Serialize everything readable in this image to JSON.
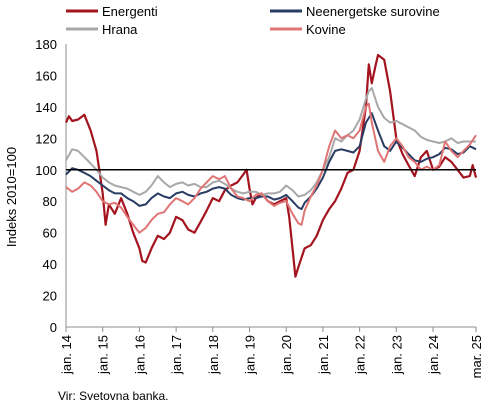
{
  "chart_data": {
    "type": "line",
    "ylabel": "Indeks 2010=100",
    "ylim": [
      0,
      180
    ],
    "yticks": [
      0,
      20,
      40,
      60,
      80,
      100,
      120,
      140,
      160,
      180
    ],
    "x_tick_labels": [
      "jan. 14",
      "jan. 15",
      "jan. 16",
      "jan. 17",
      "jan. 18",
      "jan. 19",
      "jan. 20",
      "jan. 21",
      "jan. 22",
      "jan. 23",
      "jan. 24",
      "mar. 25"
    ],
    "x_tick_values": [
      2014.0,
      2015.0,
      2016.0,
      2017.0,
      2018.0,
      2019.0,
      2020.0,
      2021.0,
      2022.0,
      2023.0,
      2024.0,
      2025.17
    ],
    "xlim": [
      2014.0,
      2025.17
    ],
    "reference_line": 100,
    "legend_position": "top",
    "source": "Vir: Svetovna banka.",
    "series": [
      {
        "name": "Energenti",
        "color": "#a3141e",
        "points": [
          [
            2014.0,
            130
          ],
          [
            2014.08,
            134
          ],
          [
            2014.17,
            131
          ],
          [
            2014.33,
            132
          ],
          [
            2014.5,
            135
          ],
          [
            2014.67,
            125
          ],
          [
            2014.83,
            112
          ],
          [
            2015.0,
            85
          ],
          [
            2015.08,
            65
          ],
          [
            2015.17,
            78
          ],
          [
            2015.33,
            72
          ],
          [
            2015.5,
            82
          ],
          [
            2015.67,
            72
          ],
          [
            2015.83,
            60
          ],
          [
            2016.0,
            50
          ],
          [
            2016.08,
            42
          ],
          [
            2016.17,
            41
          ],
          [
            2016.33,
            50
          ],
          [
            2016.5,
            58
          ],
          [
            2016.67,
            56
          ],
          [
            2016.83,
            60
          ],
          [
            2017.0,
            70
          ],
          [
            2017.17,
            68
          ],
          [
            2017.33,
            62
          ],
          [
            2017.5,
            60
          ],
          [
            2017.67,
            67
          ],
          [
            2017.83,
            74
          ],
          [
            2018.0,
            82
          ],
          [
            2018.17,
            80
          ],
          [
            2018.33,
            87
          ],
          [
            2018.5,
            90
          ],
          [
            2018.67,
            92
          ],
          [
            2018.83,
            97
          ],
          [
            2018.92,
            100
          ],
          [
            2019.0,
            88
          ],
          [
            2019.08,
            78
          ],
          [
            2019.17,
            82
          ],
          [
            2019.33,
            85
          ],
          [
            2019.5,
            80
          ],
          [
            2019.67,
            78
          ],
          [
            2019.83,
            80
          ],
          [
            2020.0,
            82
          ],
          [
            2020.08,
            70
          ],
          [
            2020.17,
            50
          ],
          [
            2020.25,
            32
          ],
          [
            2020.33,
            38
          ],
          [
            2020.5,
            50
          ],
          [
            2020.67,
            52
          ],
          [
            2020.83,
            58
          ],
          [
            2021.0,
            68
          ],
          [
            2021.17,
            75
          ],
          [
            2021.33,
            80
          ],
          [
            2021.5,
            88
          ],
          [
            2021.67,
            98
          ],
          [
            2021.83,
            100
          ],
          [
            2022.0,
            112
          ],
          [
            2022.17,
            140
          ],
          [
            2022.25,
            167
          ],
          [
            2022.33,
            155
          ],
          [
            2022.42,
            165
          ],
          [
            2022.5,
            173
          ],
          [
            2022.67,
            170
          ],
          [
            2022.83,
            150
          ],
          [
            2023.0,
            120
          ],
          [
            2023.17,
            110
          ],
          [
            2023.33,
            103
          ],
          [
            2023.5,
            96
          ],
          [
            2023.67,
            108
          ],
          [
            2023.83,
            112
          ],
          [
            2024.0,
            100
          ],
          [
            2024.17,
            102
          ],
          [
            2024.33,
            108
          ],
          [
            2024.5,
            105
          ],
          [
            2024.67,
            100
          ],
          [
            2024.83,
            95
          ],
          [
            2025.0,
            96
          ],
          [
            2025.08,
            103
          ],
          [
            2025.17,
            95
          ]
        ]
      },
      {
        "name": "Neenergetske surovine",
        "color": "#283c64",
        "points": [
          [
            2014.0,
            97
          ],
          [
            2014.17,
            101
          ],
          [
            2014.33,
            100
          ],
          [
            2014.5,
            98
          ],
          [
            2014.67,
            96
          ],
          [
            2014.83,
            93
          ],
          [
            2015.0,
            90
          ],
          [
            2015.17,
            87
          ],
          [
            2015.33,
            85
          ],
          [
            2015.5,
            85
          ],
          [
            2015.67,
            82
          ],
          [
            2015.83,
            80
          ],
          [
            2016.0,
            77
          ],
          [
            2016.17,
            78
          ],
          [
            2016.33,
            82
          ],
          [
            2016.5,
            85
          ],
          [
            2016.67,
            83
          ],
          [
            2016.83,
            82
          ],
          [
            2017.0,
            85
          ],
          [
            2017.17,
            86
          ],
          [
            2017.33,
            84
          ],
          [
            2017.5,
            83
          ],
          [
            2017.67,
            85
          ],
          [
            2017.83,
            86
          ],
          [
            2018.0,
            88
          ],
          [
            2018.17,
            89
          ],
          [
            2018.33,
            88
          ],
          [
            2018.5,
            84
          ],
          [
            2018.67,
            82
          ],
          [
            2018.83,
            81
          ],
          [
            2019.0,
            82
          ],
          [
            2019.17,
            82
          ],
          [
            2019.33,
            83
          ],
          [
            2019.5,
            83
          ],
          [
            2019.67,
            81
          ],
          [
            2019.83,
            82
          ],
          [
            2020.0,
            84
          ],
          [
            2020.17,
            80
          ],
          [
            2020.33,
            76
          ],
          [
            2020.42,
            75
          ],
          [
            2020.5,
            79
          ],
          [
            2020.67,
            83
          ],
          [
            2020.83,
            88
          ],
          [
            2021.0,
            95
          ],
          [
            2021.17,
            105
          ],
          [
            2021.33,
            112
          ],
          [
            2021.5,
            113
          ],
          [
            2021.67,
            112
          ],
          [
            2021.83,
            111
          ],
          [
            2022.0,
            115
          ],
          [
            2022.17,
            130
          ],
          [
            2022.33,
            136
          ],
          [
            2022.5,
            125
          ],
          [
            2022.67,
            115
          ],
          [
            2022.83,
            112
          ],
          [
            2023.0,
            118
          ],
          [
            2023.17,
            114
          ],
          [
            2023.33,
            110
          ],
          [
            2023.5,
            106
          ],
          [
            2023.67,
            105
          ],
          [
            2023.83,
            107
          ],
          [
            2024.0,
            108
          ],
          [
            2024.17,
            110
          ],
          [
            2024.33,
            114
          ],
          [
            2024.5,
            113
          ],
          [
            2024.67,
            110
          ],
          [
            2024.83,
            111
          ],
          [
            2025.0,
            115
          ],
          [
            2025.17,
            113
          ]
        ]
      },
      {
        "name": "Hrana",
        "color": "#a8a8a8",
        "points": [
          [
            2014.0,
            106
          ],
          [
            2014.17,
            113
          ],
          [
            2014.33,
            112
          ],
          [
            2014.5,
            108
          ],
          [
            2014.67,
            104
          ],
          [
            2014.83,
            100
          ],
          [
            2015.0,
            95
          ],
          [
            2015.17,
            92
          ],
          [
            2015.33,
            90
          ],
          [
            2015.5,
            89
          ],
          [
            2015.67,
            88
          ],
          [
            2015.83,
            86
          ],
          [
            2016.0,
            84
          ],
          [
            2016.17,
            86
          ],
          [
            2016.33,
            90
          ],
          [
            2016.5,
            96
          ],
          [
            2016.67,
            92
          ],
          [
            2016.83,
            89
          ],
          [
            2017.0,
            91
          ],
          [
            2017.17,
            92
          ],
          [
            2017.33,
            90
          ],
          [
            2017.5,
            91
          ],
          [
            2017.67,
            89
          ],
          [
            2017.83,
            89
          ],
          [
            2018.0,
            92
          ],
          [
            2018.17,
            93
          ],
          [
            2018.33,
            91
          ],
          [
            2018.5,
            88
          ],
          [
            2018.67,
            86
          ],
          [
            2018.83,
            85
          ],
          [
            2019.0,
            86
          ],
          [
            2019.17,
            86
          ],
          [
            2019.33,
            84
          ],
          [
            2019.5,
            85
          ],
          [
            2019.67,
            85
          ],
          [
            2019.83,
            86
          ],
          [
            2020.0,
            90
          ],
          [
            2020.17,
            87
          ],
          [
            2020.33,
            83
          ],
          [
            2020.5,
            84
          ],
          [
            2020.67,
            87
          ],
          [
            2020.83,
            92
          ],
          [
            2021.0,
            100
          ],
          [
            2021.17,
            108
          ],
          [
            2021.33,
            120
          ],
          [
            2021.5,
            118
          ],
          [
            2021.67,
            122
          ],
          [
            2021.83,
            125
          ],
          [
            2022.0,
            132
          ],
          [
            2022.17,
            145
          ],
          [
            2022.25,
            150
          ],
          [
            2022.33,
            152
          ],
          [
            2022.5,
            140
          ],
          [
            2022.67,
            133
          ],
          [
            2022.83,
            130
          ],
          [
            2023.0,
            131
          ],
          [
            2023.17,
            129
          ],
          [
            2023.33,
            127
          ],
          [
            2023.5,
            125
          ],
          [
            2023.67,
            121
          ],
          [
            2023.83,
            119
          ],
          [
            2024.0,
            118
          ],
          [
            2024.17,
            117
          ],
          [
            2024.33,
            118
          ],
          [
            2024.5,
            120
          ],
          [
            2024.67,
            117
          ],
          [
            2024.83,
            118
          ],
          [
            2025.0,
            118
          ],
          [
            2025.17,
            118
          ]
        ]
      },
      {
        "name": "Kovine",
        "color": "#e07575",
        "points": [
          [
            2014.0,
            89
          ],
          [
            2014.17,
            86
          ],
          [
            2014.33,
            88
          ],
          [
            2014.5,
            92
          ],
          [
            2014.67,
            90
          ],
          [
            2014.83,
            86
          ],
          [
            2015.0,
            80
          ],
          [
            2015.17,
            78
          ],
          [
            2015.33,
            79
          ],
          [
            2015.5,
            76
          ],
          [
            2015.67,
            70
          ],
          [
            2015.83,
            65
          ],
          [
            2016.0,
            60
          ],
          [
            2016.17,
            63
          ],
          [
            2016.33,
            68
          ],
          [
            2016.5,
            72
          ],
          [
            2016.67,
            73
          ],
          [
            2016.83,
            78
          ],
          [
            2017.0,
            82
          ],
          [
            2017.17,
            80
          ],
          [
            2017.33,
            78
          ],
          [
            2017.5,
            82
          ],
          [
            2017.67,
            88
          ],
          [
            2017.83,
            92
          ],
          [
            2018.0,
            96
          ],
          [
            2018.17,
            94
          ],
          [
            2018.33,
            96
          ],
          [
            2018.5,
            88
          ],
          [
            2018.67,
            83
          ],
          [
            2018.83,
            82
          ],
          [
            2019.0,
            80
          ],
          [
            2019.17,
            84
          ],
          [
            2019.33,
            85
          ],
          [
            2019.5,
            80
          ],
          [
            2019.67,
            77
          ],
          [
            2019.83,
            79
          ],
          [
            2020.0,
            80
          ],
          [
            2020.17,
            72
          ],
          [
            2020.33,
            66
          ],
          [
            2020.42,
            65
          ],
          [
            2020.5,
            74
          ],
          [
            2020.67,
            83
          ],
          [
            2020.83,
            90
          ],
          [
            2021.0,
            100
          ],
          [
            2021.17,
            115
          ],
          [
            2021.33,
            125
          ],
          [
            2021.5,
            120
          ],
          [
            2021.67,
            122
          ],
          [
            2021.83,
            120
          ],
          [
            2022.0,
            125
          ],
          [
            2022.17,
            140
          ],
          [
            2022.25,
            142
          ],
          [
            2022.33,
            130
          ],
          [
            2022.5,
            112
          ],
          [
            2022.67,
            105
          ],
          [
            2022.83,
            115
          ],
          [
            2023.0,
            120
          ],
          [
            2023.17,
            115
          ],
          [
            2023.33,
            108
          ],
          [
            2023.5,
            105
          ],
          [
            2023.67,
            100
          ],
          [
            2023.83,
            102
          ],
          [
            2024.0,
            100
          ],
          [
            2024.17,
            103
          ],
          [
            2024.33,
            118
          ],
          [
            2024.5,
            112
          ],
          [
            2024.67,
            108
          ],
          [
            2024.83,
            112
          ],
          [
            2025.0,
            116
          ],
          [
            2025.17,
            122
          ]
        ]
      }
    ]
  }
}
